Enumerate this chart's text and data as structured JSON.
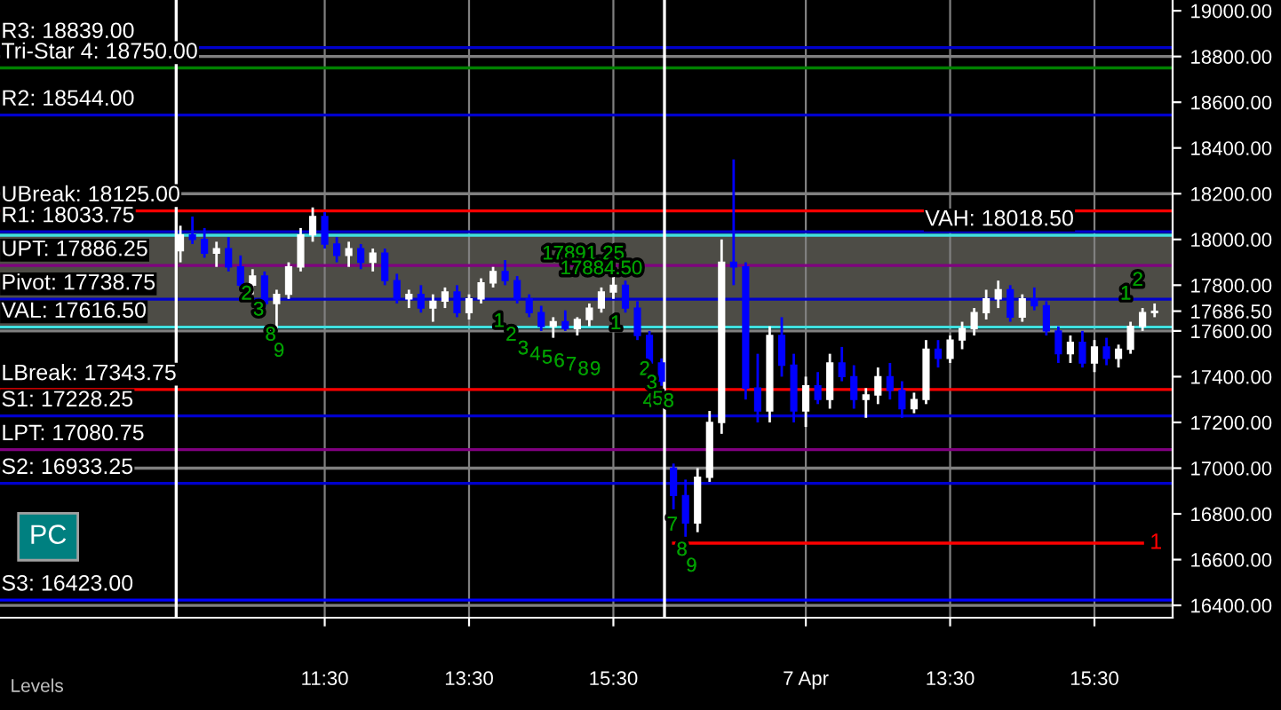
{
  "chart_data": {
    "type": "candlestick",
    "categories": [
      null,
      null,
      null,
      null,
      null,
      null,
      null,
      null,
      null,
      null,
      null,
      null,
      "11:30",
      null,
      null,
      null,
      null,
      null,
      null,
      null,
      null,
      null,
      null,
      null,
      "13:30",
      null,
      null,
      null,
      null,
      null,
      null,
      null,
      null,
      null,
      null,
      null,
      "15:30",
      null,
      null,
      null,
      null,
      null,
      null,
      null,
      null,
      null,
      null,
      null,
      null,
      null,
      null,
      null,
      "7 Apr",
      null,
      null,
      null,
      null,
      null,
      null,
      null,
      null,
      null,
      null,
      null,
      "13:30",
      null,
      null,
      null,
      null,
      null,
      null,
      null,
      null,
      null,
      null,
      null,
      "15:30",
      null,
      null,
      null,
      null,
      null
    ],
    "ohlc": [
      [
        17950,
        18060,
        17900,
        18020
      ],
      [
        18020,
        18100,
        17980,
        18000
      ],
      [
        18000,
        18050,
        17920,
        17940
      ],
      [
        17940,
        17990,
        17880,
        17960
      ],
      [
        17960,
        18010,
        17860,
        17880
      ],
      [
        17880,
        17930,
        17780,
        17800
      ],
      [
        17800,
        17870,
        17760,
        17840
      ],
      [
        17840,
        17860,
        17700,
        17720
      ],
      [
        17720,
        17780,
        17610,
        17760
      ],
      [
        17760,
        17900,
        17740,
        17880
      ],
      [
        17880,
        18050,
        17860,
        18020
      ],
      [
        18020,
        18140,
        17990,
        18100
      ],
      [
        18100,
        18120,
        17960,
        17980
      ],
      [
        17980,
        18010,
        17900,
        17930
      ],
      [
        17930,
        17990,
        17880,
        17960
      ],
      [
        17960,
        17980,
        17870,
        17900
      ],
      [
        17900,
        17960,
        17860,
        17940
      ],
      [
        17940,
        17960,
        17800,
        17820
      ],
      [
        17820,
        17850,
        17720,
        17740
      ],
      [
        17740,
        17780,
        17700,
        17760
      ],
      [
        17760,
        17800,
        17680,
        17700
      ],
      [
        17700,
        17760,
        17640,
        17730
      ],
      [
        17730,
        17790,
        17700,
        17770
      ],
      [
        17770,
        17800,
        17660,
        17680
      ],
      [
        17680,
        17760,
        17650,
        17740
      ],
      [
        17740,
        17830,
        17720,
        17810
      ],
      [
        17810,
        17880,
        17790,
        17860
      ],
      [
        17860,
        17910,
        17800,
        17820
      ],
      [
        17820,
        17840,
        17720,
        17740
      ],
      [
        17740,
        17760,
        17660,
        17680
      ],
      [
        17680,
        17710,
        17600,
        17620
      ],
      [
        17620,
        17660,
        17570,
        17640
      ],
      [
        17640,
        17690,
        17600,
        17610
      ],
      [
        17610,
        17660,
        17580,
        17650
      ],
      [
        17650,
        17720,
        17620,
        17700
      ],
      [
        17700,
        17790,
        17680,
        17770
      ],
      [
        17770,
        17840,
        17740,
        17800
      ],
      [
        17800,
        17820,
        17680,
        17700
      ],
      [
        17700,
        17730,
        17560,
        17580
      ],
      [
        17580,
        17600,
        17440,
        17460
      ],
      [
        17460,
        17480,
        17360,
        17380
      ],
      [
        17000,
        17020,
        16820,
        16880
      ],
      [
        16880,
        16950,
        16700,
        16760
      ],
      [
        16760,
        17000,
        16720,
        16960
      ],
      [
        16960,
        17250,
        16940,
        17200
      ],
      [
        17200,
        18000,
        17150,
        17900
      ],
      [
        17900,
        18350,
        17800,
        17880
      ],
      [
        17880,
        17900,
        17300,
        17350
      ],
      [
        17350,
        17500,
        17200,
        17250
      ],
      [
        17250,
        17620,
        17200,
        17580
      ],
      [
        17580,
        17660,
        17400,
        17450
      ],
      [
        17450,
        17500,
        17200,
        17250
      ],
      [
        17250,
        17400,
        17180,
        17360
      ],
      [
        17360,
        17420,
        17280,
        17300
      ],
      [
        17300,
        17500,
        17260,
        17460
      ],
      [
        17460,
        17530,
        17380,
        17400
      ],
      [
        17400,
        17450,
        17260,
        17300
      ],
      [
        17300,
        17350,
        17220,
        17320
      ],
      [
        17320,
        17440,
        17280,
        17400
      ],
      [
        17400,
        17460,
        17300,
        17340
      ],
      [
        17340,
        17380,
        17220,
        17260
      ],
      [
        17260,
        17330,
        17240,
        17300
      ],
      [
        17300,
        17560,
        17280,
        17520
      ],
      [
        17520,
        17560,
        17440,
        17480
      ],
      [
        17480,
        17580,
        17460,
        17560
      ],
      [
        17560,
        17640,
        17520,
        17610
      ],
      [
        17610,
        17700,
        17580,
        17680
      ],
      [
        17680,
        17780,
        17650,
        17740
      ],
      [
        17740,
        17820,
        17700,
        17780
      ],
      [
        17780,
        17800,
        17640,
        17660
      ],
      [
        17660,
        17760,
        17640,
        17740
      ],
      [
        17740,
        17790,
        17690,
        17710
      ],
      [
        17710,
        17730,
        17580,
        17600
      ],
      [
        17600,
        17620,
        17460,
        17500
      ],
      [
        17500,
        17580,
        17460,
        17550
      ],
      [
        17550,
        17600,
        17440,
        17460
      ],
      [
        17460,
        17560,
        17420,
        17530
      ],
      [
        17530,
        17570,
        17450,
        17480
      ],
      [
        17480,
        17540,
        17440,
        17520
      ],
      [
        17520,
        17640,
        17500,
        17620
      ],
      [
        17620,
        17700,
        17600,
        17680
      ],
      [
        17680,
        17720,
        17660,
        17686.5
      ]
    ],
    "colors": [
      "#ffffff",
      "#0000ff",
      "#0000ff",
      "#ffffff",
      "#0000ff",
      "#0000ff",
      "#ffffff",
      "#0000ff",
      "#ffffff",
      "#ffffff",
      "#ffffff",
      "#ffffff",
      "#0000ff",
      "#0000ff",
      "#ffffff",
      "#0000ff",
      "#ffffff",
      "#0000ff",
      "#0000ff",
      "#ffffff",
      "#0000ff",
      "#ffffff",
      "#ffffff",
      "#0000ff",
      "#ffffff",
      "#ffffff",
      "#ffffff",
      "#0000ff",
      "#0000ff",
      "#0000ff",
      "#0000ff",
      "#ffffff",
      "#0000ff",
      "#ffffff",
      "#ffffff",
      "#ffffff",
      "#ffffff",
      "#0000ff",
      "#0000ff",
      "#0000ff",
      "#0000ff",
      "#0000ff",
      "#0000ff",
      "#ffffff",
      "#ffffff",
      "#ffffff",
      "#0000ff",
      "#0000ff",
      "#0000ff",
      "#ffffff",
      "#0000ff",
      "#0000ff",
      "#ffffff",
      "#0000ff",
      "#ffffff",
      "#0000ff",
      "#0000ff",
      "#ffffff",
      "#ffffff",
      "#0000ff",
      "#0000ff",
      "#ffffff",
      "#ffffff",
      "#0000ff",
      "#ffffff",
      "#ffffff",
      "#ffffff",
      "#ffffff",
      "#ffffff",
      "#0000ff",
      "#ffffff",
      "#0000ff",
      "#0000ff",
      "#0000ff",
      "#ffffff",
      "#0000ff",
      "#ffffff",
      "#0000ff",
      "#ffffff",
      "#ffffff",
      "#ffffff",
      "#ffffff"
    ],
    "series": [
      {
        "type": "line",
        "name": "1",
        "color": "#ff0000",
        "values": [
          null,
          null,
          null,
          null,
          null,
          null,
          null,
          null,
          null,
          null,
          null,
          null,
          null,
          null,
          null,
          null,
          null,
          null,
          null,
          null,
          null,
          null,
          null,
          null,
          null,
          null,
          null,
          null,
          null,
          null,
          null,
          null,
          null,
          null,
          null,
          null,
          null,
          null,
          null,
          null,
          null,
          16672,
          16672,
          16672,
          16672,
          16672,
          16672,
          16672,
          16672,
          16672,
          16672,
          16672,
          16672,
          16672,
          16672,
          16672,
          16672,
          16672,
          16672,
          16672,
          16672,
          16672,
          16672,
          16672,
          16672,
          16672,
          16672,
          16672,
          16672,
          16672,
          16672,
          16672,
          16672,
          16672,
          16672,
          16672,
          16672,
          16672,
          16672,
          16672,
          16672,
          null
        ]
      }
    ],
    "ylim": [
      16346,
      19047
    ],
    "yticks": [
      {
        "value": 16400,
        "label": "16400.00"
      },
      {
        "value": 16600,
        "label": "16600.00"
      },
      {
        "value": 16800,
        "label": "16800.00"
      },
      {
        "value": 17000,
        "label": "17000.00"
      },
      {
        "value": 17200,
        "label": "17200.00"
      },
      {
        "value": 17400,
        "label": "17400.00"
      },
      {
        "value": 17600,
        "label": "17600.00"
      },
      {
        "value": 17686.5,
        "label": "17686.50"
      },
      {
        "value": 17800,
        "label": "17800.00"
      },
      {
        "value": 18000,
        "label": "18000.00"
      },
      {
        "value": 18200,
        "label": "18200.00"
      },
      {
        "value": 18400,
        "label": "18400.00"
      },
      {
        "value": 18600,
        "label": "18600.00"
      },
      {
        "value": 18800,
        "label": "18800.00"
      },
      {
        "value": 19000,
        "label": "19000.00"
      }
    ],
    "grid": "x",
    "bands": [
      {
        "axis": "y",
        "from": 17616.5,
        "to": 18018.5,
        "color": "#4d4c46"
      }
    ],
    "ref_lines": [
      {
        "axis": "y",
        "value": 18800,
        "color": "#808080"
      },
      {
        "axis": "y",
        "value": 18200,
        "color": "#808080"
      },
      {
        "axis": "y",
        "value": 17600,
        "color": "#808080"
      },
      {
        "axis": "y",
        "value": 17000,
        "color": "#808080"
      },
      {
        "axis": "y",
        "value": 16400,
        "color": "#808080"
      },
      {
        "axis": "y",
        "value": 18839.0,
        "label": "R3: 18839.00",
        "color": "#0000cc"
      },
      {
        "axis": "y",
        "value": 18750.0,
        "label": "Tri-Star 4: 18750.00",
        "color": "#008000"
      },
      {
        "axis": "y",
        "value": 18544.0,
        "label": "R2: 18544.00",
        "color": "#0000cc"
      },
      {
        "axis": "y",
        "value": 18125.0,
        "label": "UBreak: 18125.00",
        "color": "#ff0000"
      },
      {
        "axis": "y",
        "value": 18033.75,
        "label": "R1: 18033.75",
        "color": "#0000cc"
      },
      {
        "axis": "y",
        "value": 18018.5,
        "label": "VAH: 18018.50",
        "color": "#40e0e0"
      },
      {
        "axis": "y",
        "value": 17886.25,
        "label": "UPT: 17886.25",
        "color": "#800080"
      },
      {
        "axis": "y",
        "value": 17738.75,
        "label": "Pivot: 17738.75",
        "color": "#0000cc"
      },
      {
        "axis": "y",
        "value": 17616.5,
        "label": "VAL: 17616.50",
        "color": "#40e0e0"
      },
      {
        "axis": "y",
        "value": 17343.75,
        "label": "LBreak: 17343.75",
        "color": "#ff0000"
      },
      {
        "axis": "y",
        "value": 17228.25,
        "label": "S1: 17228.25",
        "color": "#0000cc"
      },
      {
        "axis": "y",
        "value": 17080.75,
        "label": "LPT: 17080.75",
        "color": "#800080"
      },
      {
        "axis": "y",
        "value": 16933.25,
        "label": "S2: 16933.25",
        "color": "#0000cc"
      },
      {
        "axis": "y",
        "value": 16423.0,
        "label": "S3: 16423.00",
        "color": "#0000ff"
      }
    ],
    "annotations": [
      "Levels",
      "PC",
      "17891.25",
      "17884.50",
      "2",
      "3",
      "8",
      "9",
      "1",
      "2",
      "3",
      "4",
      "5",
      "6",
      "7",
      "8",
      "9",
      "1",
      "2",
      "3",
      "4",
      "5",
      "8",
      "7",
      "8",
      "9",
      "1",
      "2"
    ]
  }
}
